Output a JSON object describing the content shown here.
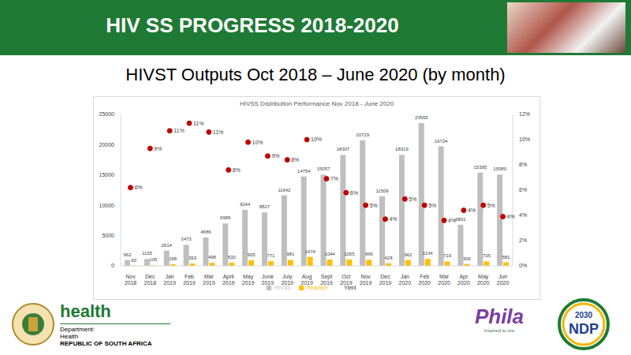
{
  "slide": {
    "header": "HIV SS PROGRESS 2018-2020",
    "subtitle": "HIVST Outputs Oct 2018 – June 2020 (by month)",
    "logos": {
      "health": "health",
      "department": [
        "Department:",
        "Health",
        "REPUBLIC OF SOUTH AFRICA"
      ],
      "phila": "Phila",
      "phila_tagline": "Inspired to live",
      "ndp": "NDP",
      "ndp_year": "2030"
    }
  },
  "chart_data": {
    "type": "bar",
    "title": "HIVSS Distribution Performance Nov 2018 - June 2020",
    "categories": [
      "Nov 2018",
      "Dec 2018",
      "Jan 2019",
      "Feb 2019",
      "Mar 2019",
      "April 2019",
      "May 2019",
      "June 2019",
      "July 2019",
      "Aug 2019",
      "Sept 2019",
      "Oct 2019",
      "Nov 2019",
      "Dec 2019",
      "Jan 2020",
      "Feb 2020",
      "Mar 2020",
      "Apr 2020",
      "May 2020",
      "Jun 2020"
    ],
    "series": [
      {
        "name": "HIVSS",
        "type": "bar",
        "color": "#bfbfbf",
        "values": [
          962,
          1135,
          2514,
          3473,
          4686,
          6989,
          9244,
          8827,
          11642,
          14754,
          15057,
          18307,
          20729,
          11509,
          18319,
          23565,
          19724,
          6801,
          15395,
          15080
        ]
      },
      {
        "name": "Reactive",
        "type": "bar",
        "color": "#ffc000",
        "values": [
          60,
          105,
          268,
          393,
          498,
          530,
          905,
          771,
          981,
          1474,
          1044,
          1055,
          999,
          428,
          962,
          1134,
          719,
          306,
          735,
          581
        ]
      },
      {
        "name": "Yield",
        "type": "scatter",
        "axis": "y2",
        "marker": "circle",
        "color": "#c00000",
        "values": [
          6.2,
          9.3,
          10.7,
          11.3,
          10.6,
          7.6,
          9.8,
          8.7,
          8.4,
          10.0,
          6.9,
          5.8,
          4.8,
          3.7,
          5.3,
          4.8,
          3.6,
          4.4,
          4.8,
          3.9
        ],
        "value_labels": [
          "6%",
          "9%",
          "11%",
          "11%",
          "11%",
          "8%",
          "10%",
          "9%",
          "8%",
          "10%",
          "7%",
          "6%",
          "5%",
          "4%",
          "5%",
          "5%",
          "4%",
          "4%",
          "5%",
          "4%"
        ]
      }
    ],
    "ylim": [
      0,
      25000
    ],
    "yticks": [
      0,
      5000,
      10000,
      15000,
      20000,
      25000
    ],
    "y2lim": [
      0,
      12
    ],
    "y2ticks": [
      {
        "value": 0,
        "label": "0%"
      },
      {
        "value": 2,
        "label": "2%"
      },
      {
        "value": 4,
        "label": "4%"
      },
      {
        "value": 6,
        "label": "6%"
      },
      {
        "value": 8,
        "label": "8%"
      },
      {
        "value": 10,
        "label": "10%"
      },
      {
        "value": 12,
        "label": "12%"
      }
    ],
    "grid": false,
    "legend": "bottom",
    "data_labels": true
  }
}
